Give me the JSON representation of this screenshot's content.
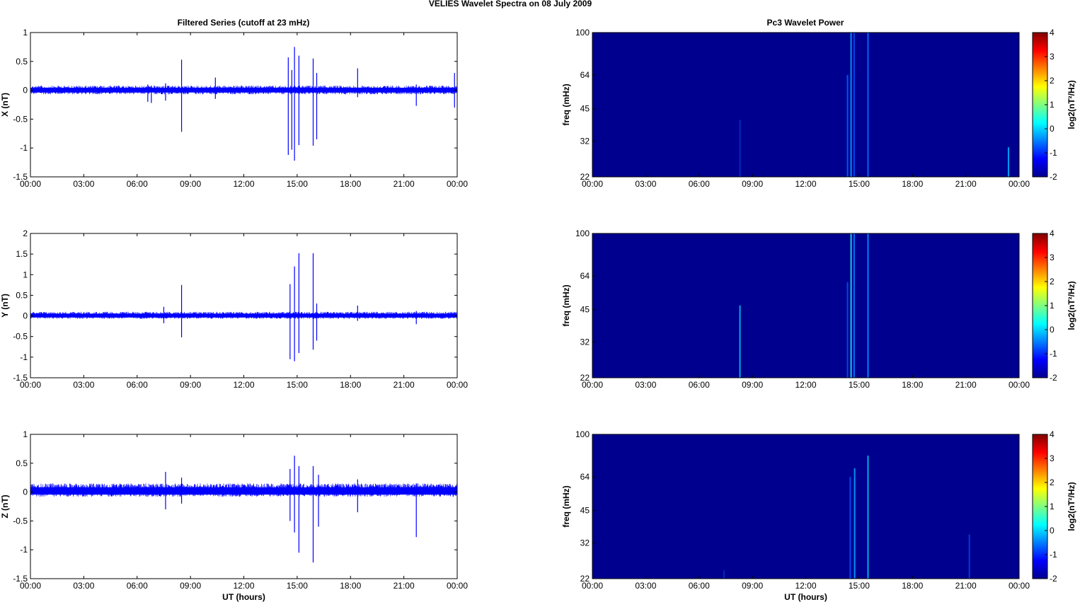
{
  "figure": {
    "title": "VELIES Wavelet Spectra on 08 July      2009",
    "left_column_title": "Filtered Series (cutoff at 23 mHz)",
    "right_column_title": "Pc3 Wavelet Power"
  },
  "chart_data": [
    {
      "type": "line",
      "panel": "filtered-x",
      "xlabel": "",
      "ylabel": "X (nT)",
      "ylim": [
        -1.5,
        1
      ],
      "yticks": [
        "1",
        "0.5",
        "0",
        "-0.5",
        "-1",
        "-1.5"
      ],
      "xlim_hours": [
        0,
        24
      ],
      "xticks": [
        "00:00",
        "03:00",
        "06:00",
        "09:00",
        "12:00",
        "15:00",
        "18:00",
        "21:00",
        "00:00"
      ],
      "color": "#0000ff",
      "noise_band": [
        -0.07,
        0.08
      ],
      "spikes": [
        {
          "t": 6.6,
          "min": -0.2,
          "max": 0.1
        },
        {
          "t": 6.8,
          "min": -0.22,
          "max": 0.08
        },
        {
          "t": 7.6,
          "min": -0.18,
          "max": 0.12
        },
        {
          "t": 8.5,
          "min": -0.72,
          "max": 0.53
        },
        {
          "t": 10.4,
          "min": -0.15,
          "max": 0.22
        },
        {
          "t": 14.5,
          "min": -1.12,
          "max": 0.57
        },
        {
          "t": 14.7,
          "min": -1.03,
          "max": 0.35
        },
        {
          "t": 14.85,
          "min": -1.22,
          "max": 0.75
        },
        {
          "t": 15.1,
          "min": -0.95,
          "max": 0.6
        },
        {
          "t": 15.9,
          "min": -0.96,
          "max": 0.55
        },
        {
          "t": 16.1,
          "min": -0.85,
          "max": 0.3
        },
        {
          "t": 18.4,
          "min": -0.12,
          "max": 0.38
        },
        {
          "t": 21.7,
          "min": -0.27,
          "max": 0.1
        },
        {
          "t": 23.85,
          "min": -0.3,
          "max": 0.3
        }
      ]
    },
    {
      "type": "line",
      "panel": "filtered-y",
      "xlabel": "",
      "ylabel": "Y (nT)",
      "ylim": [
        -1.5,
        2
      ],
      "yticks": [
        "2",
        "1.5",
        "1",
        "0.5",
        "0",
        "-0.5",
        "-1",
        "-1.5"
      ],
      "xlim_hours": [
        0,
        24
      ],
      "xticks": [
        "00:00",
        "03:00",
        "06:00",
        "09:00",
        "12:00",
        "15:00",
        "18:00",
        "21:00",
        "00:00"
      ],
      "color": "#0000ff",
      "noise_band": [
        -0.07,
        0.1
      ],
      "spikes": [
        {
          "t": 7.5,
          "min": -0.18,
          "max": 0.22
        },
        {
          "t": 8.5,
          "min": -0.52,
          "max": 0.75
        },
        {
          "t": 14.6,
          "min": -1.05,
          "max": 0.77
        },
        {
          "t": 14.85,
          "min": -1.1,
          "max": 1.2
        },
        {
          "t": 15.1,
          "min": -0.9,
          "max": 1.52
        },
        {
          "t": 15.9,
          "min": -0.82,
          "max": 1.52
        },
        {
          "t": 16.1,
          "min": -0.6,
          "max": 0.3
        },
        {
          "t": 18.4,
          "min": -0.12,
          "max": 0.25
        },
        {
          "t": 21.7,
          "min": -0.2,
          "max": 0.12
        }
      ]
    },
    {
      "type": "line",
      "panel": "filtered-z",
      "xlabel": "UT (hours)",
      "ylabel": "Z (nT)",
      "ylim": [
        -1.5,
        1
      ],
      "yticks": [
        "1",
        "0.5",
        "0",
        "-0.5",
        "-1",
        "-1.5"
      ],
      "xlim_hours": [
        0,
        24
      ],
      "xticks": [
        "00:00",
        "03:00",
        "06:00",
        "09:00",
        "12:00",
        "15:00",
        "18:00",
        "21:00",
        "00:00"
      ],
      "color": "#0000ff",
      "noise_band": [
        -0.08,
        0.15
      ],
      "spikes": [
        {
          "t": 7.6,
          "min": -0.3,
          "max": 0.35
        },
        {
          "t": 8.5,
          "min": -0.2,
          "max": 0.25
        },
        {
          "t": 14.6,
          "min": -0.5,
          "max": 0.4
        },
        {
          "t": 14.85,
          "min": -0.7,
          "max": 0.63
        },
        {
          "t": 15.1,
          "min": -1.05,
          "max": 0.45
        },
        {
          "t": 15.9,
          "min": -1.22,
          "max": 0.45
        },
        {
          "t": 16.2,
          "min": -0.6,
          "max": 0.3
        },
        {
          "t": 18.4,
          "min": -0.35,
          "max": 0.22
        },
        {
          "t": 21.7,
          "min": -0.78,
          "max": 0.15
        }
      ]
    },
    {
      "type": "heatmap",
      "panel": "wavelet-x",
      "xlabel": "",
      "ylabel": "freq (mHz)",
      "yticks": [
        "100",
        "64",
        "45",
        "32",
        "22"
      ],
      "xlim_hours": [
        0,
        24
      ],
      "xticks": [
        "00:00",
        "03:00",
        "06:00",
        "09:00",
        "12:00",
        "15:00",
        "18:00",
        "21:00",
        "00:00"
      ],
      "background_color": "#00008f",
      "colorbar": {
        "label": "log2(nT²/Hz)",
        "ticks": [
          "4",
          "3",
          "2",
          "1",
          "0",
          "-1",
          "-2"
        ],
        "range": [
          -2,
          4
        ]
      },
      "streaks": [
        {
          "t": 8.3,
          "fmin": 22,
          "fmax": 40,
          "color": "#0030c0"
        },
        {
          "t": 14.35,
          "fmin": 22,
          "fmax": 64,
          "color": "#0060ff"
        },
        {
          "t": 14.55,
          "fmin": 22,
          "fmax": 100,
          "color": "#00a0ff"
        },
        {
          "t": 14.72,
          "fmin": 22,
          "fmax": 100,
          "color": "#0050f0"
        },
        {
          "t": 15.5,
          "fmin": 22,
          "fmax": 100,
          "color": "#0070ff"
        },
        {
          "t": 23.4,
          "fmin": 22,
          "fmax": 30,
          "color": "#00b0ff"
        }
      ]
    },
    {
      "type": "heatmap",
      "panel": "wavelet-y",
      "xlabel": "",
      "ylabel": "freq (mHz)",
      "yticks": [
        "100",
        "64",
        "45",
        "32",
        "22"
      ],
      "xlim_hours": [
        0,
        24
      ],
      "xticks": [
        "00:00",
        "03:00",
        "06:00",
        "09:00",
        "12:00",
        "15:00",
        "18:00",
        "21:00",
        "00:00"
      ],
      "background_color": "#00008f",
      "colorbar": {
        "label": "log2(nT²/Hz)",
        "ticks": [
          "4",
          "3",
          "2",
          "1",
          "0",
          "-1",
          "-2"
        ],
        "range": [
          -2,
          4
        ]
      },
      "streaks": [
        {
          "t": 8.3,
          "fmin": 22,
          "fmax": 47,
          "color": "#00c0e0"
        },
        {
          "t": 14.35,
          "fmin": 22,
          "fmax": 60,
          "color": "#0050f0"
        },
        {
          "t": 14.55,
          "fmin": 22,
          "fmax": 100,
          "color": "#20e0e0"
        },
        {
          "t": 14.72,
          "fmin": 22,
          "fmax": 100,
          "color": "#0080ff"
        },
        {
          "t": 15.5,
          "fmin": 22,
          "fmax": 100,
          "color": "#0090ff"
        }
      ]
    },
    {
      "type": "heatmap",
      "panel": "wavelet-z",
      "xlabel": "UT (hours)",
      "ylabel": "freq (mHz)",
      "yticks": [
        "100",
        "64",
        "45",
        "32",
        "22"
      ],
      "xlim_hours": [
        0,
        24
      ],
      "xticks": [
        "00:00",
        "03:00",
        "06:00",
        "09:00",
        "12:00",
        "15:00",
        "18:00",
        "21:00",
        "00:00"
      ],
      "background_color": "#00008f",
      "colorbar": {
        "label": "log2(nT²/Hz)",
        "ticks": [
          "4",
          "3",
          "2",
          "1",
          "0",
          "-1",
          "-2"
        ],
        "range": [
          -2,
          4
        ]
      },
      "streaks": [
        {
          "t": 7.4,
          "fmin": 22,
          "fmax": 24,
          "color": "#0030c0"
        },
        {
          "t": 14.5,
          "fmin": 22,
          "fmax": 64,
          "color": "#0050f0"
        },
        {
          "t": 14.75,
          "fmin": 22,
          "fmax": 70,
          "color": "#00a0ff"
        },
        {
          "t": 15.5,
          "fmin": 22,
          "fmax": 80,
          "color": "#00c0e0"
        },
        {
          "t": 21.2,
          "fmin": 22,
          "fmax": 35,
          "color": "#0040e0"
        }
      ]
    }
  ]
}
